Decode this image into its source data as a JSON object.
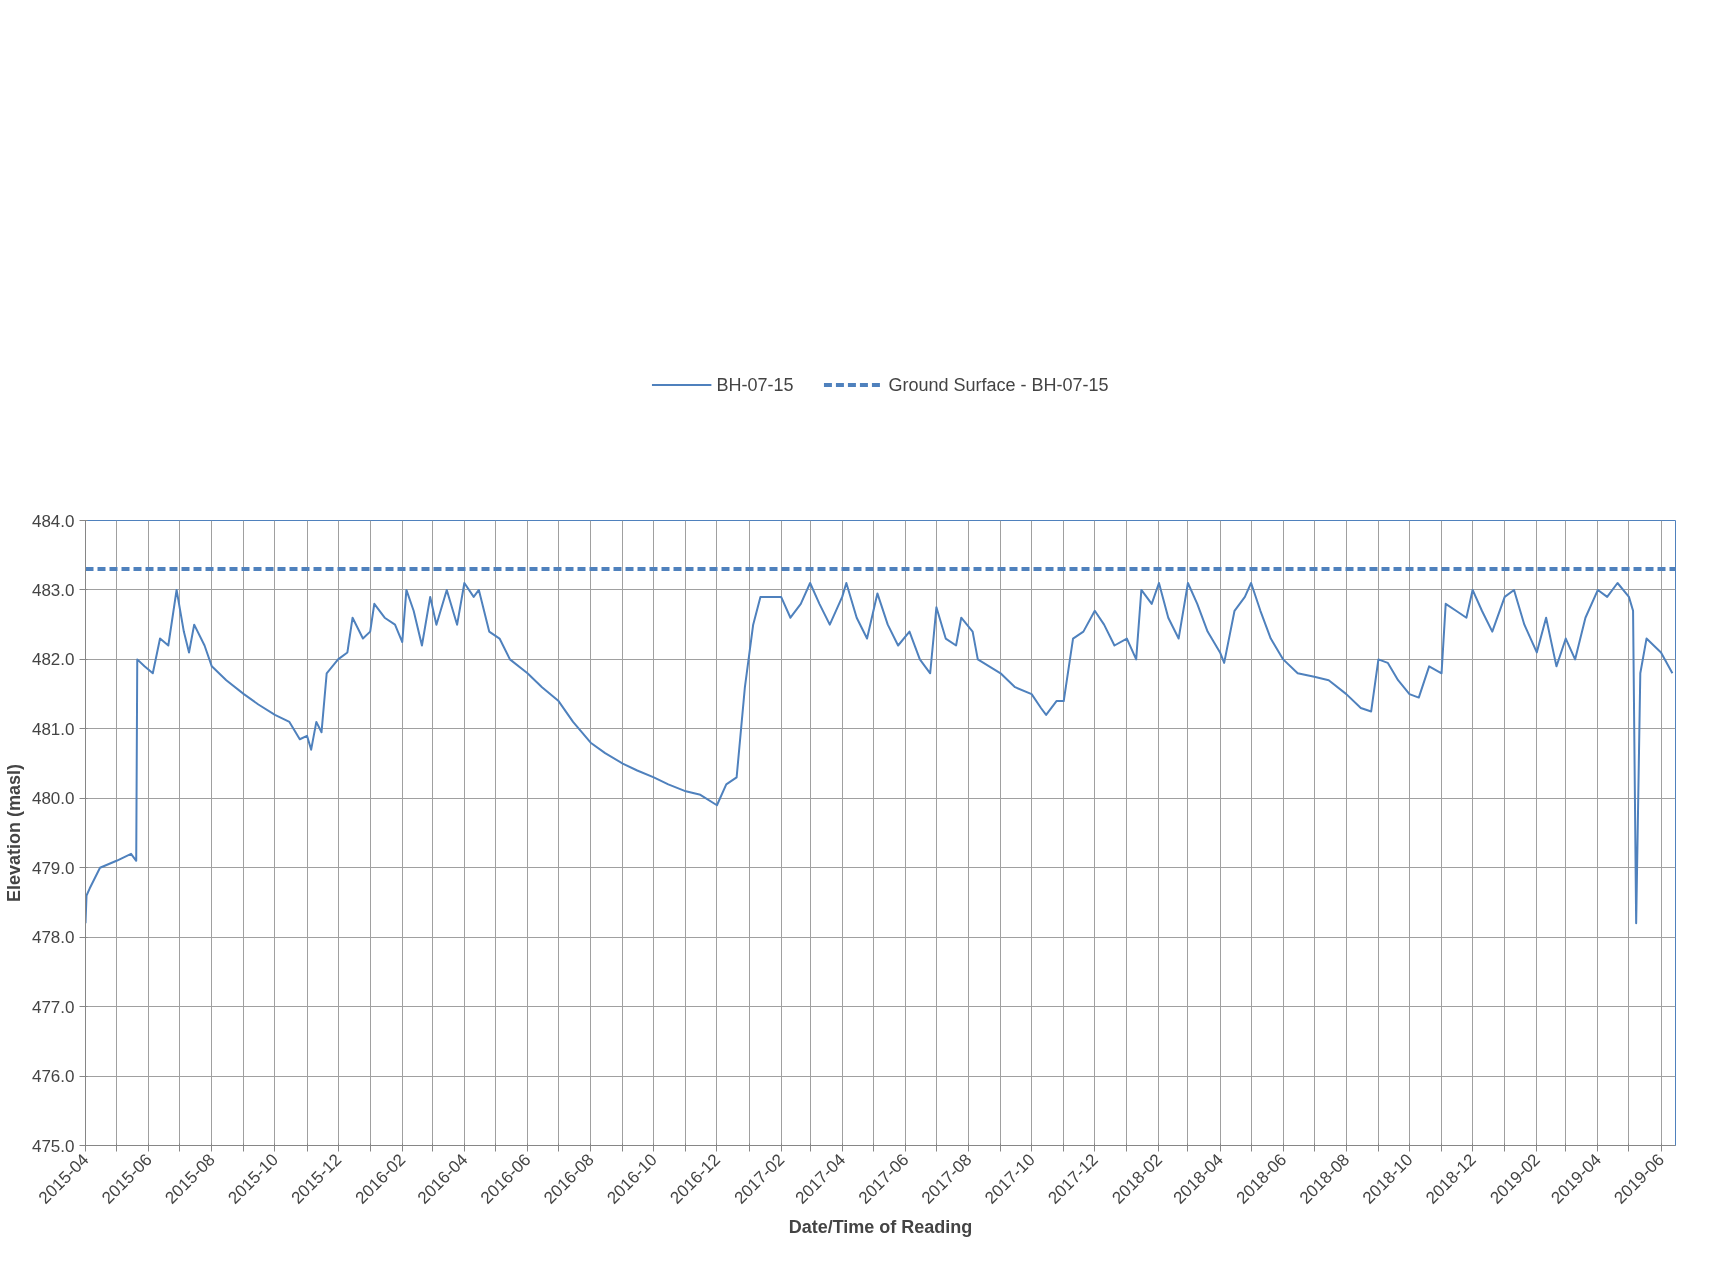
{
  "chart_data": {
    "type": "line",
    "xlabel": "Date/Time of Reading",
    "ylabel": "Elevation (masl)",
    "ylim": [
      475.0,
      484.0
    ],
    "yticks": [
      {
        "value": 475,
        "label": "475.0"
      },
      {
        "value": 476,
        "label": "476.0"
      },
      {
        "value": 477,
        "label": "477.0"
      },
      {
        "value": 478,
        "label": "478.0"
      },
      {
        "value": 479,
        "label": "479.0"
      },
      {
        "value": 480,
        "label": "480.0"
      },
      {
        "value": 481,
        "label": "481.0"
      },
      {
        "value": 482,
        "label": "482.0"
      },
      {
        "value": 483,
        "label": "483.0"
      },
      {
        "value": 484,
        "label": "484.0"
      }
    ],
    "xlim": [
      "2015-04-01",
      "2019-06-15"
    ],
    "xticks": [
      {
        "value": "2015-04",
        "label": "2015-04"
      },
      {
        "value": "2015-05",
        "label": null
      },
      {
        "value": "2015-06",
        "label": "2015-06"
      },
      {
        "value": "2015-07",
        "label": null
      },
      {
        "value": "2015-08",
        "label": "2015-08"
      },
      {
        "value": "2015-09",
        "label": null
      },
      {
        "value": "2015-10",
        "label": "2015-10"
      },
      {
        "value": "2015-11",
        "label": null
      },
      {
        "value": "2015-12",
        "label": "2015-12"
      },
      {
        "value": "2016-01",
        "label": null
      },
      {
        "value": "2016-02",
        "label": "2016-02"
      },
      {
        "value": "2016-03",
        "label": null
      },
      {
        "value": "2016-04",
        "label": "2016-04"
      },
      {
        "value": "2016-05",
        "label": null
      },
      {
        "value": "2016-06",
        "label": "2016-06"
      },
      {
        "value": "2016-07",
        "label": null
      },
      {
        "value": "2016-08",
        "label": "2016-08"
      },
      {
        "value": "2016-09",
        "label": null
      },
      {
        "value": "2016-10",
        "label": "2016-10"
      },
      {
        "value": "2016-11",
        "label": null
      },
      {
        "value": "2016-12",
        "label": "2016-12"
      },
      {
        "value": "2017-01",
        "label": null
      },
      {
        "value": "2017-02",
        "label": "2017-02"
      },
      {
        "value": "2017-03",
        "label": null
      },
      {
        "value": "2017-04",
        "label": "2017-04"
      },
      {
        "value": "2017-05",
        "label": null
      },
      {
        "value": "2017-06",
        "label": "2017-06"
      },
      {
        "value": "2017-07",
        "label": null
      },
      {
        "value": "2017-08",
        "label": "2017-08"
      },
      {
        "value": "2017-09",
        "label": null
      },
      {
        "value": "2017-10",
        "label": "2017-10"
      },
      {
        "value": "2017-11",
        "label": null
      },
      {
        "value": "2017-12",
        "label": "2017-12"
      },
      {
        "value": "2018-01",
        "label": null
      },
      {
        "value": "2018-02",
        "label": "2018-02"
      },
      {
        "value": "2018-03",
        "label": null
      },
      {
        "value": "2018-04",
        "label": "2018-04"
      },
      {
        "value": "2018-05",
        "label": null
      },
      {
        "value": "2018-06",
        "label": "2018-06"
      },
      {
        "value": "2018-07",
        "label": null
      },
      {
        "value": "2018-08",
        "label": "2018-08"
      },
      {
        "value": "2018-09",
        "label": null
      },
      {
        "value": "2018-10",
        "label": "2018-10"
      },
      {
        "value": "2018-11",
        "label": null
      },
      {
        "value": "2018-12",
        "label": "2018-12"
      },
      {
        "value": "2019-01",
        "label": null
      },
      {
        "value": "2019-02",
        "label": "2019-02"
      },
      {
        "value": "2019-03",
        "label": null
      },
      {
        "value": "2019-04",
        "label": "2019-04"
      },
      {
        "value": "2019-05",
        "label": null
      },
      {
        "value": "2019-06",
        "label": "2019-06"
      }
    ],
    "grid": true,
    "legend": "top",
    "marker": "none",
    "series": [
      {
        "name": "BH-07-15",
        "color": "#4f81bd",
        "line_style": "solid",
        "x": [
          "2015-04-01",
          "2015-04-02",
          "2015-04-05",
          "2015-04-15",
          "2015-05-01",
          "2015-05-15",
          "2015-05-20",
          "2015-05-21",
          "2015-05-28",
          "2015-06-05",
          "2015-06-12",
          "2015-06-20",
          "2015-06-28",
          "2015-07-05",
          "2015-07-10",
          "2015-07-15",
          "2015-07-25",
          "2015-08-01",
          "2015-08-15",
          "2015-09-01",
          "2015-09-15",
          "2015-10-01",
          "2015-10-15",
          "2015-10-25",
          "2015-11-01",
          "2015-11-05",
          "2015-11-10",
          "2015-11-15",
          "2015-11-20",
          "2015-12-01",
          "2015-12-10",
          "2015-12-15",
          "2015-12-25",
          "2016-01-01",
          "2016-01-05",
          "2016-01-15",
          "2016-01-25",
          "2016-02-01",
          "2016-02-05",
          "2016-02-12",
          "2016-02-20",
          "2016-02-28",
          "2016-03-05",
          "2016-03-15",
          "2016-03-25",
          "2016-04-01",
          "2016-04-10",
          "2016-04-15",
          "2016-04-25",
          "2016-05-05",
          "2016-05-15",
          "2016-06-01",
          "2016-06-15",
          "2016-07-01",
          "2016-07-15",
          "2016-08-01",
          "2016-08-15",
          "2016-09-01",
          "2016-09-15",
          "2016-10-01",
          "2016-10-15",
          "2016-11-01",
          "2016-11-15",
          "2016-12-01",
          "2016-12-10",
          "2016-12-20",
          "2016-12-28",
          "2017-01-05",
          "2017-01-12",
          "2017-02-01",
          "2017-02-10",
          "2017-02-20",
          "2017-03-01",
          "2017-03-10",
          "2017-03-20",
          "2017-04-01",
          "2017-04-05",
          "2017-04-15",
          "2017-04-25",
          "2017-05-05",
          "2017-05-15",
          "2017-05-25",
          "2017-06-05",
          "2017-06-15",
          "2017-06-25",
          "2017-07-01",
          "2017-07-10",
          "2017-07-20",
          "2017-07-25",
          "2017-08-05",
          "2017-08-10",
          "2017-09-01",
          "2017-09-15",
          "2017-10-01",
          "2017-10-10",
          "2017-10-15",
          "2017-10-25",
          "2017-11-01",
          "2017-11-10",
          "2017-11-20",
          "2017-12-01",
          "2017-12-10",
          "2017-12-20",
          "2018-01-01",
          "2018-01-10",
          "2018-01-15",
          "2018-01-25",
          "2018-02-01",
          "2018-02-10",
          "2018-02-20",
          "2018-03-01",
          "2018-03-10",
          "2018-03-20",
          "2018-04-01",
          "2018-04-05",
          "2018-04-15",
          "2018-04-25",
          "2018-05-01",
          "2018-05-10",
          "2018-05-20",
          "2018-06-01",
          "2018-06-15",
          "2018-07-01",
          "2018-07-15",
          "2018-08-01",
          "2018-08-15",
          "2018-08-25",
          "2018-09-01",
          "2018-09-10",
          "2018-09-20",
          "2018-10-01",
          "2018-10-10",
          "2018-10-20",
          "2018-11-01",
          "2018-11-05",
          "2018-11-15",
          "2018-11-25",
          "2018-12-01",
          "2018-12-10",
          "2018-12-20",
          "2019-01-01",
          "2019-01-10",
          "2019-01-20",
          "2019-02-01",
          "2019-02-10",
          "2019-02-20",
          "2019-03-01",
          "2019-03-10",
          "2019-03-20",
          "2019-04-01",
          "2019-04-10",
          "2019-04-20",
          "2019-05-01",
          "2019-05-05",
          "2019-05-08",
          "2019-05-12",
          "2019-05-18",
          "2019-06-01",
          "2019-06-12"
        ],
        "values": [
          478.2,
          478.6,
          478.7,
          479.0,
          479.1,
          479.2,
          479.1,
          482.0,
          481.9,
          481.8,
          482.3,
          482.2,
          483.0,
          482.4,
          482.1,
          482.5,
          482.2,
          481.9,
          481.7,
          481.5,
          481.35,
          481.2,
          481.1,
          480.85,
          480.9,
          480.7,
          481.1,
          480.95,
          481.8,
          482.0,
          482.1,
          482.6,
          482.3,
          482.4,
          482.8,
          482.6,
          482.5,
          482.25,
          483.0,
          482.7,
          482.2,
          482.9,
          482.5,
          483.0,
          482.5,
          483.1,
          482.9,
          483.0,
          482.4,
          482.3,
          482.0,
          481.8,
          481.6,
          481.4,
          481.1,
          480.8,
          480.65,
          480.5,
          480.4,
          480.3,
          480.2,
          480.1,
          480.05,
          479.9,
          480.2,
          480.3,
          481.6,
          482.5,
          482.9,
          482.9,
          482.6,
          482.8,
          483.1,
          482.8,
          482.5,
          482.9,
          483.1,
          482.6,
          482.3,
          482.95,
          482.5,
          482.2,
          482.4,
          482.0,
          481.8,
          482.75,
          482.3,
          482.2,
          482.6,
          482.4,
          482.0,
          481.8,
          481.6,
          481.5,
          481.3,
          481.2,
          481.4,
          481.4,
          482.3,
          482.4,
          482.7,
          482.5,
          482.2,
          482.3,
          482.0,
          483.0,
          482.8,
          483.1,
          482.6,
          482.3,
          483.1,
          482.8,
          482.4,
          482.1,
          481.95,
          482.7,
          482.9,
          483.1,
          482.7,
          482.3,
          482.0,
          481.8,
          481.75,
          481.7,
          481.5,
          481.3,
          481.25,
          482.0,
          481.95,
          481.7,
          481.5,
          481.45,
          481.9,
          481.8,
          482.8,
          482.7,
          482.6,
          483.0,
          482.7,
          482.4,
          482.9,
          483.0,
          482.5,
          482.1,
          482.6,
          481.9,
          482.3,
          482.0,
          482.6,
          483.0,
          482.9,
          483.1,
          482.9,
          482.7,
          478.2,
          481.8,
          482.3,
          482.1,
          481.8
        ]
      },
      {
        "name": "Ground Surface - BH-07-15",
        "color": "#4f81bd",
        "line_style": "dashed",
        "x": [
          "2015-04-01",
          "2019-06-15"
        ],
        "values": [
          483.3,
          483.3
        ]
      }
    ]
  }
}
